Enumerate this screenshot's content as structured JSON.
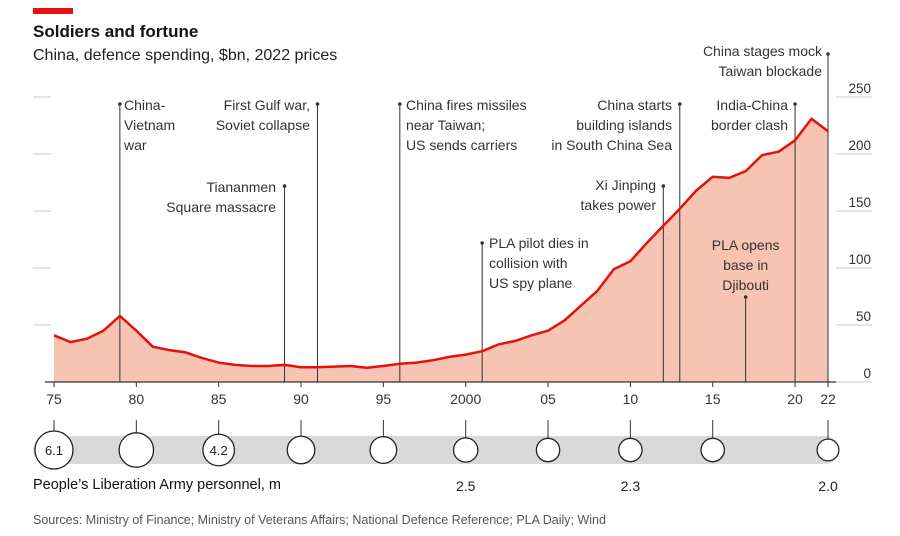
{
  "title": "Soldiers and fortune",
  "subtitle": "China, defence spending, $bn, 2022 prices",
  "personnel_label": "People’s Liberation Army personnel, m",
  "source": "Sources: Ministry of Finance; Ministry of Veterans Affairs; National Defence Reference; PLA Daily; Wind",
  "colors": {
    "line": "#e3120b",
    "area": "#f7c3b3",
    "accent": "#e3120b",
    "bubble_band": "#d9d9d9"
  },
  "chart_data": [
    {
      "type": "area",
      "x": [
        1975,
        1976,
        1977,
        1978,
        1979,
        1980,
        1981,
        1982,
        1983,
        1984,
        1985,
        1986,
        1987,
        1988,
        1989,
        1990,
        1991,
        1992,
        1993,
        1994,
        1995,
        1996,
        1997,
        1998,
        1999,
        2000,
        2001,
        2002,
        2003,
        2004,
        2005,
        2006,
        2007,
        2008,
        2009,
        2010,
        2011,
        2012,
        2013,
        2014,
        2015,
        2016,
        2017,
        2018,
        2019,
        2020,
        2021,
        2022
      ],
      "y": [
        41,
        35,
        38,
        45,
        58,
        45,
        31,
        28,
        26,
        21,
        17,
        15,
        14,
        14,
        15,
        13,
        13,
        13.5,
        14,
        12.5,
        14,
        16,
        17,
        19,
        22,
        24,
        27,
        33,
        36,
        41,
        45,
        54,
        67,
        80,
        99,
        106,
        122,
        137,
        152,
        168,
        180,
        179,
        185,
        199,
        202,
        212,
        231,
        220
      ],
      "ylabel": "",
      "ylim": [
        0,
        260
      ],
      "y_ticks": [
        "0",
        "50",
        "100",
        "150",
        "200",
        "250"
      ],
      "x_tick_labels": [
        {
          "year": 1975,
          "label": "75"
        },
        {
          "year": 1980,
          "label": "80"
        },
        {
          "year": 1985,
          "label": "85"
        },
        {
          "year": 1990,
          "label": "90"
        },
        {
          "year": 1995,
          "label": "95"
        },
        {
          "year": 2000,
          "label": "2000"
        },
        {
          "year": 2005,
          "label": "05"
        },
        {
          "year": 2010,
          "label": "10"
        },
        {
          "year": 2015,
          "label": "15"
        },
        {
          "year": 2020,
          "label": "20"
        },
        {
          "year": 2022,
          "label": "22"
        }
      ],
      "grid": true,
      "annotations": [
        {
          "year": 1979,
          "lines": [
            "China-",
            "Vietnam",
            "war"
          ],
          "align": "left"
        },
        {
          "year": 1989,
          "lines": [
            "Tiananmen",
            "Square massacre"
          ],
          "align": "right"
        },
        {
          "year": 1991,
          "lines": [
            "First Gulf war,",
            "Soviet collapse"
          ],
          "align": "right"
        },
        {
          "year": 1996,
          "lines": [
            "China fires missiles",
            "near Taiwan;",
            "US sends carriers"
          ],
          "align": "left"
        },
        {
          "year": 2001,
          "lines": [
            "PLA pilot dies in",
            "collision with",
            "US spy plane"
          ],
          "align": "left"
        },
        {
          "year": 2012,
          "lines": [
            "Xi Jinping",
            "takes power"
          ],
          "align": "right"
        },
        {
          "year": 2013,
          "lines": [
            "China starts",
            "building islands",
            "in South China Sea"
          ],
          "align": "right"
        },
        {
          "year": 2017,
          "lines": [
            "PLA opens",
            "base in",
            "Djibouti"
          ],
          "align": "center"
        },
        {
          "year": 2020,
          "lines": [
            "India-China",
            "border clash"
          ],
          "align": "right"
        },
        {
          "year": 2022,
          "lines": [
            "China stages mock",
            "Taiwan blockade"
          ],
          "align": "right"
        }
      ]
    },
    {
      "type": "scatter",
      "name": "People’s Liberation Army personnel, m",
      "x": [
        1975,
        1980,
        1985,
        1990,
        1995,
        2000,
        2005,
        2010,
        2015,
        2022
      ],
      "values": [
        6.1,
        5.0,
        4.2,
        3.2,
        3.0,
        2.5,
        2.3,
        2.3,
        2.3,
        2.0
      ],
      "inside_labels": [
        {
          "year": 1975,
          "text": "6.1"
        },
        {
          "year": 1985,
          "text": "4.2"
        }
      ],
      "below_labels": [
        {
          "year": 2000,
          "text": "2.5"
        },
        {
          "year": 2010,
          "text": "2.3"
        },
        {
          "year": 2022,
          "text": "2.0"
        }
      ]
    }
  ]
}
